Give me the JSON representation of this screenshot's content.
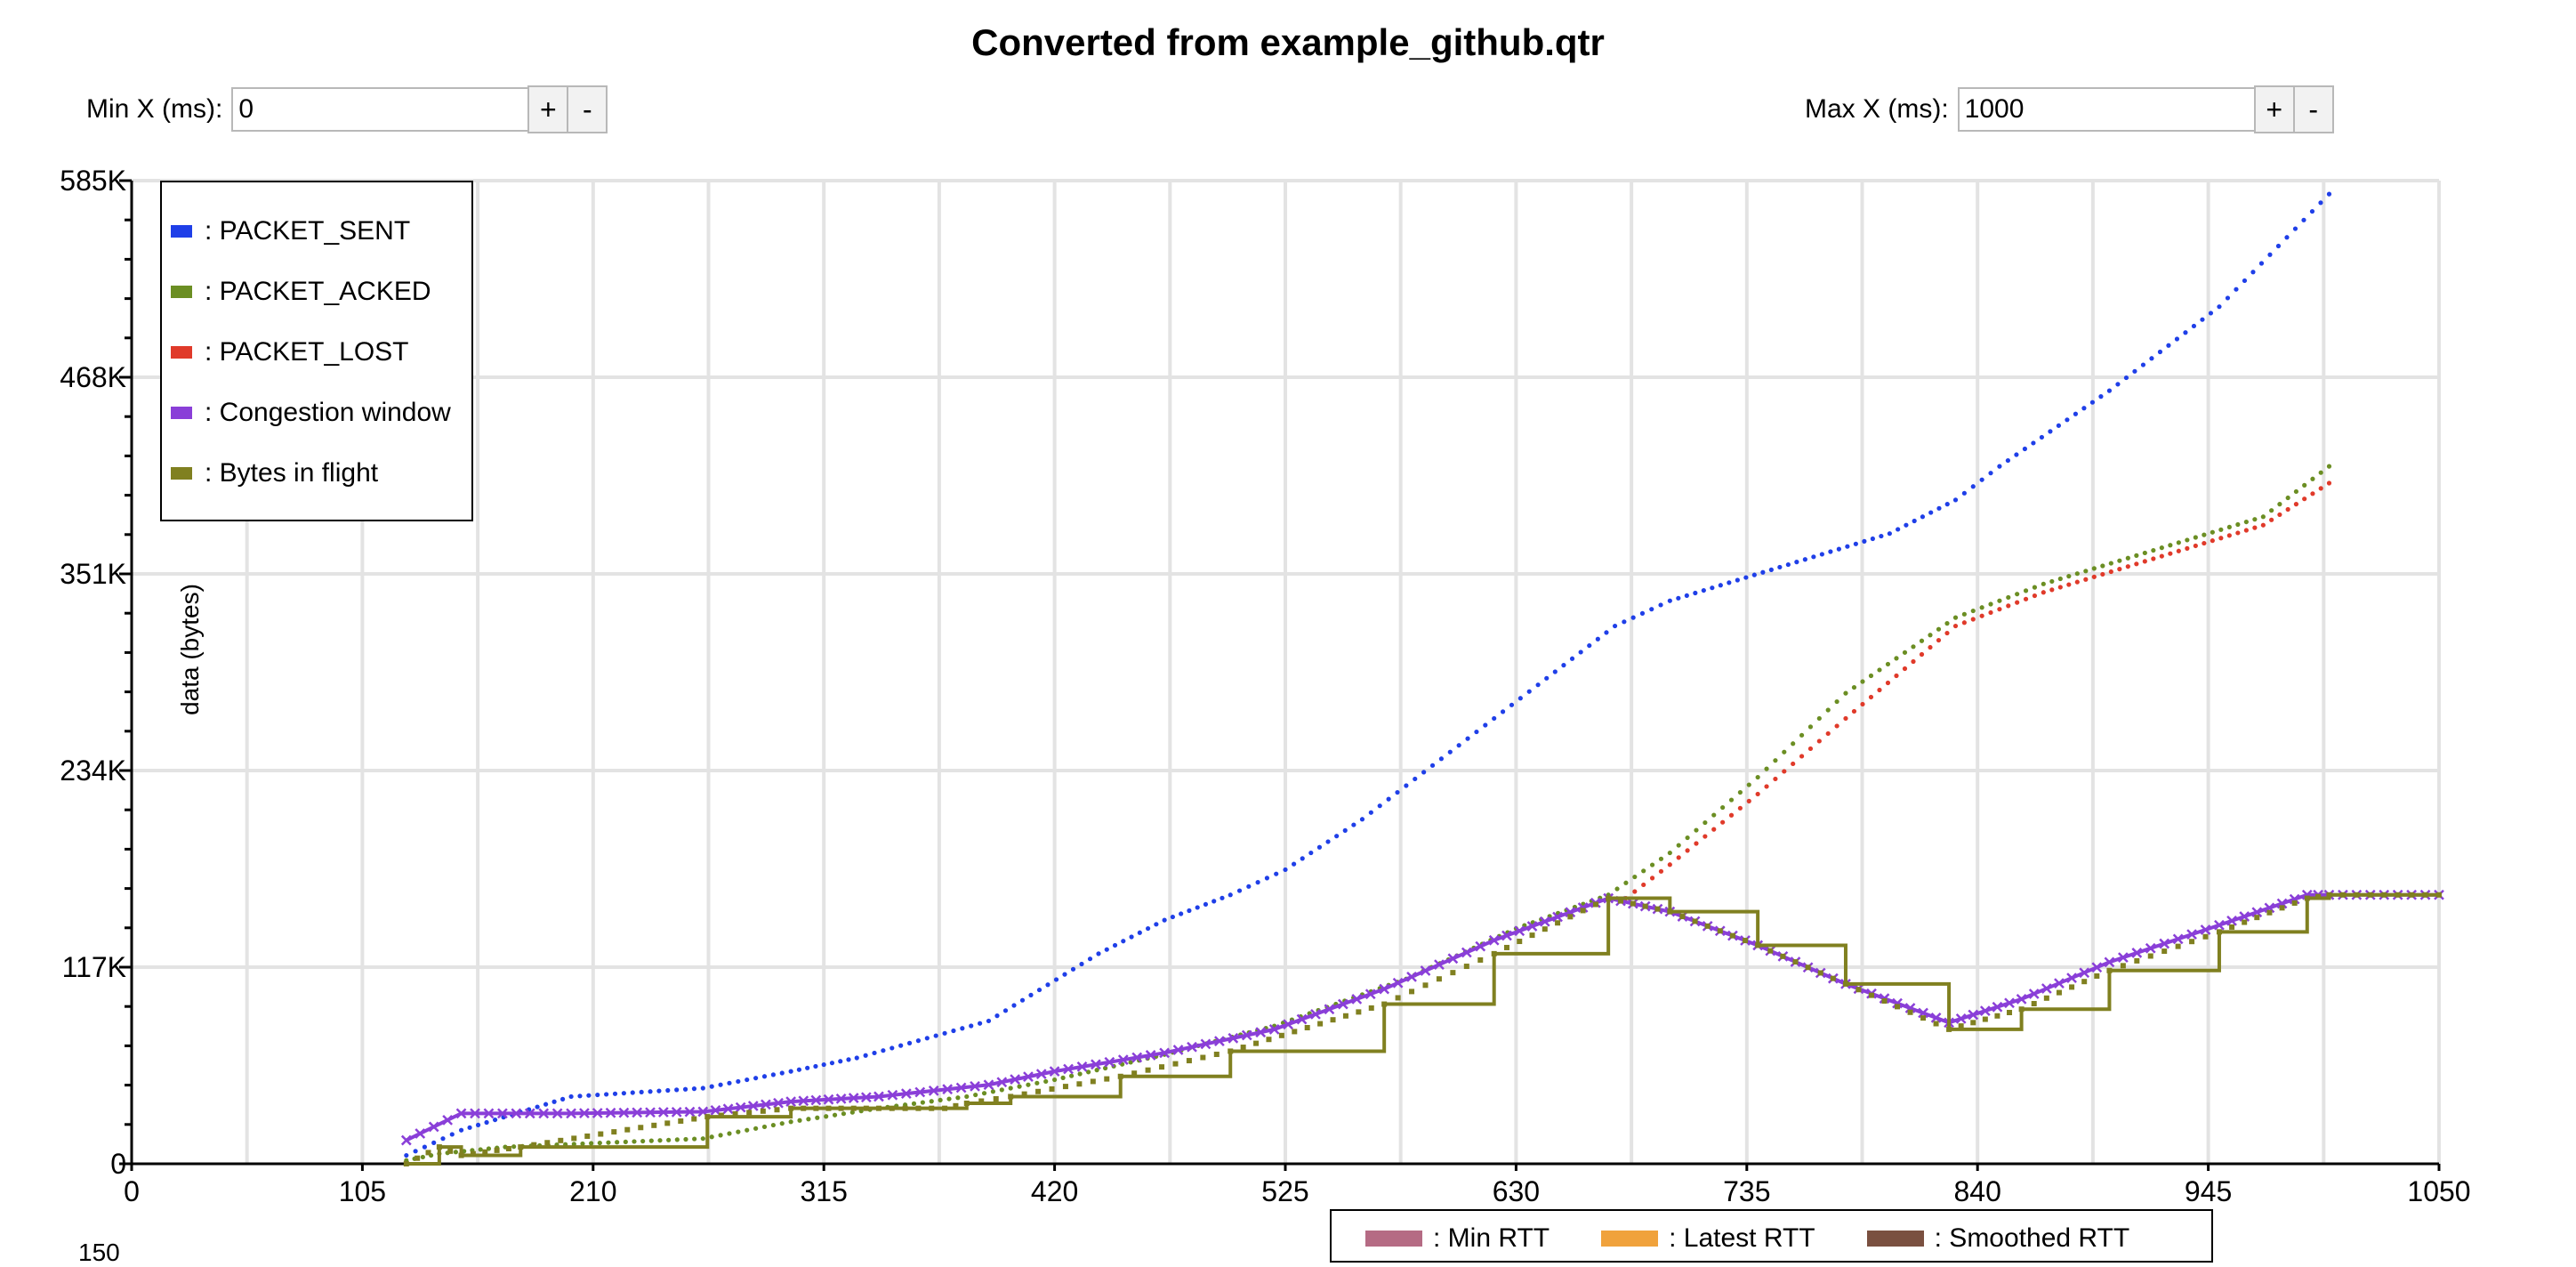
{
  "page": {
    "title": "Converted from example_github.qtr"
  },
  "controls": {
    "min_x": {
      "label": "Min X (ms):",
      "value": "0",
      "plus": "+",
      "minus": "-"
    },
    "max_x": {
      "label": "Max X (ms):",
      "value": "1000",
      "plus": "+",
      "minus": "-"
    }
  },
  "chart_data": {
    "type": "scatter",
    "ylabel": "data (bytes)",
    "xlabel": "",
    "xlim": [
      0,
      1050
    ],
    "ylim": [
      0,
      585000
    ],
    "x_ticks": [
      "0",
      "105",
      "210",
      "315",
      "420",
      "525",
      "630",
      "735",
      "840",
      "945",
      "1050"
    ],
    "y_ticks": [
      "0",
      "117K",
      "234K",
      "351K",
      "468K",
      "585K"
    ],
    "grid": true,
    "legend_position": "top-left",
    "series": [
      {
        "name": ": PACKET_SENT",
        "color": "#1f3fe8",
        "style": "points",
        "x": [
          125,
          150,
          200,
          260,
          300,
          330,
          390,
          440,
          470,
          500,
          525,
          560,
          600,
          640,
          675,
          700,
          750,
          800,
          830,
          850,
          900,
          950,
          1000
        ],
        "y": [
          5000,
          20000,
          40000,
          45000,
          55000,
          63000,
          85000,
          125000,
          145000,
          160000,
          175000,
          205000,
          245000,
          285000,
          320000,
          335000,
          355000,
          375000,
          395000,
          415000,
          460000,
          510000,
          577000
        ]
      },
      {
        "name": ": PACKET_ACKED",
        "color": "#6b8e23",
        "style": "points",
        "x": [
          125,
          140,
          170,
          260,
          300,
          340,
          380,
          420,
          470,
          520,
          580,
          630,
          672,
          700,
          740,
          780,
          830,
          870,
          920,
          970,
          1000
        ],
        "y": [
          2000,
          6000,
          10000,
          15000,
          25000,
          33000,
          40000,
          50000,
          65000,
          82000,
          110000,
          140000,
          160000,
          185000,
          230000,
          280000,
          325000,
          345000,
          365000,
          385000,
          415000
        ]
      },
      {
        "name": ": PACKET_LOST",
        "color": "#e03a2a",
        "style": "points",
        "x": [
          680,
          700,
          740,
          780,
          830,
          870,
          920,
          970,
          1000
        ],
        "y": [
          158000,
          178000,
          220000,
          265000,
          320000,
          340000,
          360000,
          380000,
          405000
        ]
      },
      {
        "name": ": Congestion window",
        "color": "#8a3fd8",
        "style": "line+markers",
        "x": [
          125,
          150,
          200,
          260,
          300,
          340,
          390,
          420,
          470,
          520,
          570,
          620,
          672,
          700,
          740,
          780,
          827,
          860,
          900,
          950,
          990,
          1000,
          1050
        ],
        "y": [
          14000,
          30000,
          30000,
          31000,
          37000,
          40000,
          47000,
          55000,
          66000,
          80000,
          104000,
          133000,
          158000,
          150000,
          130000,
          107000,
          84000,
          98000,
          120000,
          142000,
          160000,
          160000,
          160000
        ]
      },
      {
        "name": ": Bytes in flight",
        "color": "#808020",
        "style": "steps",
        "x": [
          125,
          140,
          150,
          177,
          262,
          300,
          340,
          370,
          380,
          400,
          450,
          500,
          570,
          620,
          672,
          700,
          740,
          780,
          827,
          860,
          900,
          950,
          990,
          1000,
          1050
        ],
        "y": [
          0,
          10000,
          5000,
          10000,
          28000,
          33000,
          33000,
          33000,
          36000,
          40000,
          52000,
          67000,
          95000,
          125000,
          158000,
          150000,
          130000,
          107000,
          80000,
          92000,
          115000,
          138000,
          158000,
          160000,
          160000
        ]
      }
    ]
  },
  "rtt_legend": {
    "items": [
      {
        "name": ": Min RTT",
        "color": "#b56b84"
      },
      {
        "name": ": Latest RTT",
        "color": "#f0a23c"
      },
      {
        "name": ": Smoothed RTT",
        "color": "#7a5040"
      }
    ]
  },
  "rtt_stub_label": "150"
}
